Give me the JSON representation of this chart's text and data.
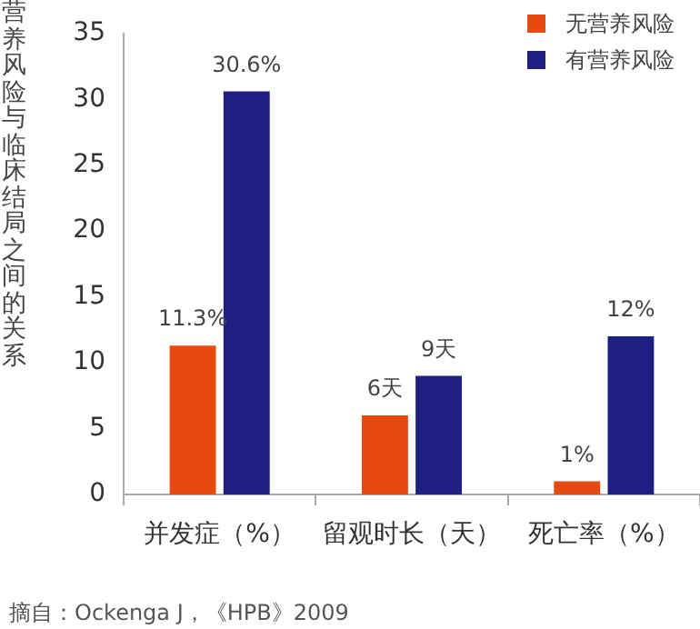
{
  "chart_data": {
    "type": "bar",
    "ylabel": "营养风险与临床结局之间的关系",
    "categories": [
      "并发症（%）",
      "留观时长（天）",
      "死亡率（%）"
    ],
    "series": [
      {
        "name": "无营养风险",
        "color": "#e8490f",
        "values": [
          11.3,
          6,
          1
        ],
        "value_labels": [
          "11.3%",
          "6天",
          "1%"
        ]
      },
      {
        "name": "有营养风险",
        "color": "#1e1f82",
        "values": [
          30.6,
          9,
          12
        ],
        "value_labels": [
          "30.6%",
          "9天",
          "12%"
        ]
      }
    ],
    "ylim": [
      0,
      35
    ],
    "yticks": [
      0,
      5,
      10,
      15,
      20,
      25,
      30,
      35
    ],
    "grid": false,
    "legend": "top right",
    "annotations": [
      "摘自：Ockenga J，《HPB》2009"
    ]
  }
}
